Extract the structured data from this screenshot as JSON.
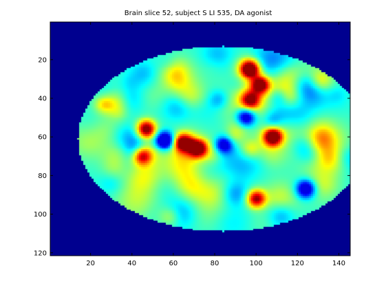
{
  "chart_data": {
    "type": "heatmap",
    "title": "Brain slice 52, subject S LI 535, DA agonist",
    "xlabel": "",
    "ylabel": "",
    "xlim": [
      0.5,
      145.5
    ],
    "ylim": [
      0.5,
      121.5
    ],
    "y_reversed": true,
    "xticks": [
      20,
      40,
      60,
      80,
      100,
      120,
      140
    ],
    "yticks": [
      20,
      40,
      60,
      80,
      100,
      120
    ],
    "colormap": "jet",
    "background_value_color": "#00008f",
    "grid": false,
    "legend": "none",
    "data_description_region": {
      "shape": "ellipse",
      "center_x": 84,
      "center_y": 61,
      "radius_x": 70,
      "radius_y": 48
    },
    "hotspots": [
      {
        "x": 97,
        "y": 25,
        "value": 0.95,
        "label": "upper right red cluster"
      },
      {
        "x": 102,
        "y": 33,
        "value": 0.9
      },
      {
        "x": 97,
        "y": 41,
        "value": 0.8
      },
      {
        "x": 47,
        "y": 56,
        "value": 0.92
      },
      {
        "x": 108,
        "y": 60,
        "value": 0.95
      },
      {
        "x": 65,
        "y": 63,
        "value": 0.88
      },
      {
        "x": 72,
        "y": 66,
        "value": 0.9
      },
      {
        "x": 45,
        "y": 70,
        "value": 0.8
      },
      {
        "x": 100,
        "y": 92,
        "value": 0.85
      },
      {
        "x": 84,
        "y": 64,
        "value": 0.05
      },
      {
        "x": 95,
        "y": 50,
        "value": 0.1
      },
      {
        "x": 124,
        "y": 87,
        "value": 0.08
      },
      {
        "x": 56,
        "y": 62,
        "value": 0.0
      }
    ]
  }
}
